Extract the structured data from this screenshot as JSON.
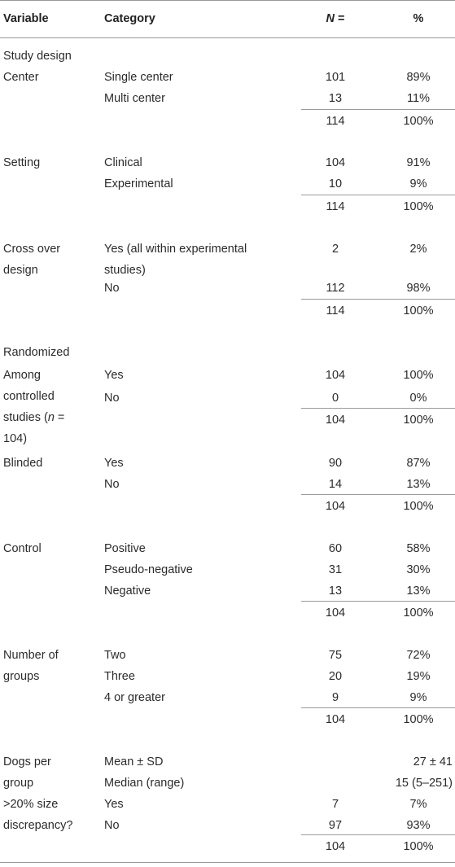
{
  "header": {
    "variable": "Variable",
    "category": "Category",
    "n_prefix": "N",
    "n_suffix": " =",
    "pct": "%"
  },
  "sections": {
    "study_design": "Study design",
    "center": {
      "label": "Center",
      "rows": [
        {
          "category": "Single center",
          "n": "101",
          "pct": "89%"
        },
        {
          "category": "Multi center",
          "n": "13",
          "pct": "11%"
        }
      ],
      "total": {
        "n": "114",
        "pct": "100%"
      }
    },
    "setting": {
      "label": "Setting",
      "rows": [
        {
          "category": "Clinical",
          "n": "104",
          "pct": "91%"
        },
        {
          "category": "Experimental",
          "n": "10",
          "pct": "9%"
        }
      ],
      "total": {
        "n": "114",
        "pct": "100%"
      }
    },
    "crossover": {
      "label": "Cross over design",
      "rows": [
        {
          "category": "Yes (all within experimental studies)",
          "n": "2",
          "pct": "2%"
        },
        {
          "category": "No",
          "n": "112",
          "pct": "98%"
        }
      ],
      "total": {
        "n": "114",
        "pct": "100%"
      }
    },
    "randomized": "Randomized",
    "controlled": {
      "label_pre": "Among controlled studies (",
      "label_n": "n",
      "label_post": " = 104)",
      "rows": [
        {
          "category": "Yes",
          "n": "104",
          "pct": "100%"
        },
        {
          "category": "No",
          "n": "0",
          "pct": "0%"
        }
      ],
      "total": {
        "n": "104",
        "pct": "100%"
      }
    },
    "blinded": {
      "label": "Blinded",
      "rows": [
        {
          "category": "Yes",
          "n": "90",
          "pct": "87%"
        },
        {
          "category": "No",
          "n": "14",
          "pct": "13%"
        }
      ],
      "total": {
        "n": "104",
        "pct": "100%"
      }
    },
    "control": {
      "label": "Control",
      "rows": [
        {
          "category": "Positive",
          "n": "60",
          "pct": "58%"
        },
        {
          "category": "Pseudo-negative",
          "n": "31",
          "pct": "30%"
        },
        {
          "category": "Negative",
          "n": "13",
          "pct": "13%"
        }
      ],
      "total": {
        "n": "104",
        "pct": "100%"
      }
    },
    "groups": {
      "label": "Number of groups",
      "rows": [
        {
          "category": "Two",
          "n": "75",
          "pct": "72%"
        },
        {
          "category": "Three",
          "n": "20",
          "pct": "19%"
        },
        {
          "category": "4 or greater",
          "n": "9",
          "pct": "9%"
        }
      ],
      "total": {
        "n": "104",
        "pct": "100%"
      }
    },
    "dogs": {
      "label": "Dogs per group",
      "rows": [
        {
          "category": "Mean ± SD",
          "value": "27 ± 41"
        },
        {
          "category": "Median (range)",
          "value": "15 (5–251)"
        }
      ]
    },
    "discrepancy": {
      "label": ">20% size discrepancy?",
      "rows": [
        {
          "category": "Yes",
          "n": "7",
          "pct": "7%"
        },
        {
          "category": "No",
          "n": "97",
          "pct": "93%"
        }
      ],
      "total": {
        "n": "104",
        "pct": "100%"
      }
    }
  }
}
